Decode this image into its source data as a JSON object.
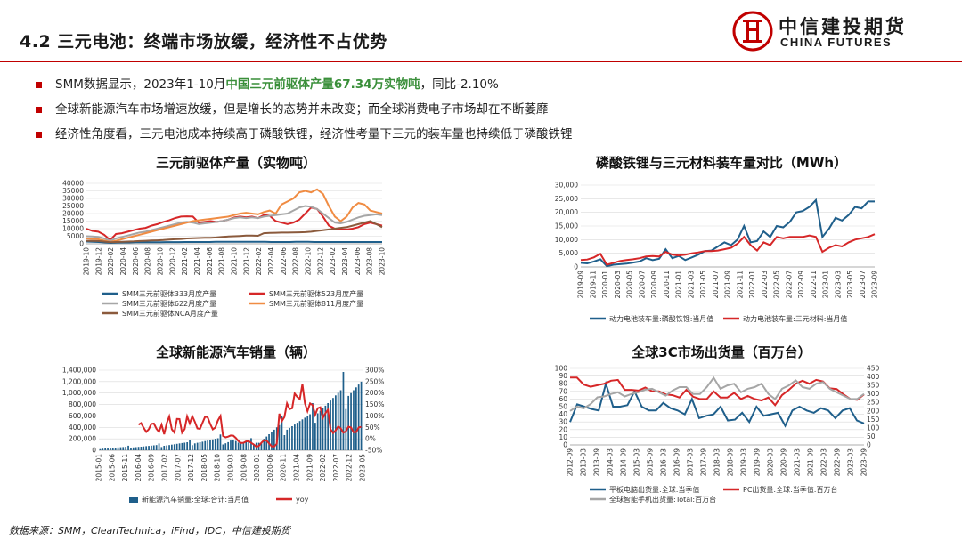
{
  "header": {
    "title": "4.2 三元电池：终端市场放缓，经济性不占优势",
    "logo_cn": "中信建投期货",
    "logo_en": "CHINA FUTURES"
  },
  "bullets": [
    {
      "pre": "SMM数据显示，2023年1-10月",
      "highlight": "中国三元前驱体产量67.34万实物吨",
      "post": "，同比-2.10%"
    },
    {
      "pre": "全球新能源汽车市场增速放缓，但是增长的态势并未改变；而全球消费电子市场却在不断萎靡",
      "highlight": "",
      "post": ""
    },
    {
      "pre": "经济性角度看，三元电池成本持续高于磷酸铁锂，经济性考量下三元的装车量也持续低于磷酸铁锂",
      "highlight": "",
      "post": ""
    }
  ],
  "source": "数据来源：SMM，CleanTechnica，iFind，IDC，中信建投期货",
  "chart_data": [
    {
      "type": "line",
      "title": "三元前驱体产量（实物吨）",
      "ylim": [
        0,
        40000
      ],
      "yticks": [
        "0",
        "5000",
        "10000",
        "15000",
        "20000",
        "25000",
        "30000",
        "35000",
        "40000"
      ],
      "xticks": [
        "2019-10",
        "2019-12",
        "2020-02",
        "2020-04",
        "2020-06",
        "2020-08",
        "2020-10",
        "2020-12",
        "2021-02",
        "2021-04",
        "2021-06",
        "2021-08",
        "2021-10",
        "2021-12",
        "2022-02",
        "2022-04",
        "2022-06",
        "2022-08",
        "2022-10",
        "2022-12",
        "2023-02",
        "2023-04",
        "2023-06",
        "2023-08",
        "2023-10"
      ],
      "legend_position": "bottom",
      "series": [
        {
          "name": "SMM三元前驱体333月度产量",
          "color": "#1f5f8b",
          "values": [
            1500,
            1300,
            1200,
            900,
            600,
            800,
            900,
            900,
            1000,
            1000,
            1000,
            1000,
            1000,
            1100,
            1100,
            1100,
            1200,
            1200,
            1200,
            1200,
            1200,
            1300,
            1300,
            1300,
            1300,
            1300,
            1300,
            1300,
            1300,
            1300,
            1200,
            1200,
            1200,
            1200,
            1300,
            1300,
            1300,
            1200,
            1200,
            1200,
            1200,
            1200,
            1200,
            1200,
            1200,
            1200,
            1200,
            1200,
            1200
          ]
        },
        {
          "name": "SMM三元前驱体523月度产量",
          "color": "#d62728",
          "values": [
            10000,
            8500,
            8000,
            6000,
            2500,
            6500,
            7000,
            8000,
            9000,
            10000,
            10500,
            12000,
            13000,
            14500,
            15500,
            17000,
            18000,
            18200,
            18000,
            14000,
            14500,
            15000,
            14500,
            15000,
            16000,
            17500,
            18000,
            17500,
            18000,
            17000,
            19000,
            18500,
            15000,
            14000,
            13000,
            14000,
            16000,
            20000,
            24000,
            23000,
            18000,
            12000,
            10000,
            9500,
            9500,
            10000,
            11000,
            13000,
            14000,
            13000,
            12000
          ]
        },
        {
          "name": "SMM三元前驱体622月度产量",
          "color": "#a6a6a6",
          "values": [
            5000,
            4800,
            4500,
            3500,
            2000,
            3500,
            4500,
            5500,
            6500,
            7500,
            8000,
            9000,
            10000,
            11000,
            12000,
            13000,
            14000,
            14500,
            14000,
            13000,
            13500,
            14000,
            14500,
            15000,
            16000,
            17000,
            17500,
            17000,
            17500,
            17000,
            18000,
            18500,
            19000,
            19500,
            20000,
            22000,
            24000,
            25000,
            24500,
            23000,
            20000,
            17000,
            14000,
            13500,
            14500,
            16000,
            17500,
            18500,
            19000,
            19500,
            19000
          ]
        },
        {
          "name": "SMM三元前驱体811月度产量",
          "color": "#f08c43",
          "values": [
            3500,
            3200,
            3000,
            2200,
            1200,
            2000,
            3000,
            4000,
            5000,
            6000,
            7000,
            8000,
            9000,
            10000,
            11000,
            12000,
            13000,
            14000,
            15000,
            15500,
            16000,
            16500,
            17000,
            17500,
            18000,
            19000,
            20000,
            20500,
            20000,
            19500,
            21000,
            22000,
            20000,
            26000,
            28000,
            30000,
            34000,
            35000,
            34000,
            36000,
            33000,
            25000,
            18000,
            15000,
            18000,
            24000,
            27000,
            26000,
            22000,
            21000,
            20000
          ]
        },
        {
          "name": "SMM三元前驱体NCA月度产量",
          "color": "#8b5a3c",
          "values": [
            2000,
            1900,
            1800,
            1500,
            1000,
            1200,
            1300,
            1500,
            1600,
            1800,
            2000,
            2200,
            2300,
            2500,
            2800,
            3000,
            3200,
            3500,
            3700,
            3800,
            4000,
            4000,
            4200,
            4500,
            4800,
            5000,
            5200,
            5400,
            5400,
            5300,
            7000,
            7200,
            7300,
            7400,
            7400,
            7500,
            7600,
            7700,
            8000,
            8500,
            9000,
            9500,
            10000,
            10500,
            11000,
            12000,
            13000,
            14000,
            15000,
            13000,
            11000
          ]
        }
      ]
    },
    {
      "type": "line",
      "title": "磷酸铁锂与三元材料装车量对比（MWh）",
      "ylim": [
        0,
        30000
      ],
      "yticks": [
        "0",
        "5,000",
        "10,000",
        "15,000",
        "20,000",
        "25,000",
        "30,000"
      ],
      "xticks": [
        "2019-09",
        "2019-11",
        "2020-01",
        "2020-03",
        "2020-05",
        "2020-07",
        "2020-09",
        "2020-11",
        "2021-01",
        "2021-03",
        "2021-05",
        "2021-07",
        "2021-09",
        "2021-11",
        "2022-01",
        "2022-03",
        "2022-05",
        "2022-07",
        "2022-09",
        "2022-11",
        "2023-01",
        "2023-03",
        "2023-05",
        "2023-07",
        "2023-09"
      ],
      "legend_position": "bottom",
      "series": [
        {
          "name": "动力电池装车量:磷酸铁锂:当月值",
          "color": "#1f5f8b",
          "values": [
            1500,
            1300,
            2000,
            2800,
            300,
            800,
            1000,
            1200,
            1600,
            2000,
            3200,
            2500,
            3000,
            6500,
            3200,
            4000,
            2500,
            3500,
            4500,
            5800,
            6000,
            7500,
            9000,
            8000,
            10000,
            15000,
            9000,
            9500,
            13000,
            11000,
            15000,
            14500,
            16500,
            20000,
            20500,
            22000,
            24500,
            11000,
            14000,
            18000,
            17000,
            19000,
            22000,
            21500,
            24000,
            24000
          ]
        },
        {
          "name": "动力电池装车量:三元材料:当月值",
          "color": "#d62728",
          "values": [
            2500,
            2700,
            3500,
            4800,
            800,
            1500,
            2200,
            2500,
            2800,
            3200,
            3800,
            4000,
            3800,
            5500,
            4500,
            4200,
            4500,
            5000,
            5300,
            5800,
            5800,
            6000,
            6500,
            7000,
            8500,
            11000,
            8000,
            6000,
            9000,
            8000,
            11000,
            10500,
            11000,
            11000,
            11000,
            11500,
            11000,
            5500,
            7000,
            8000,
            7500,
            9000,
            10000,
            10500,
            11000,
            12000
          ]
        }
      ]
    },
    {
      "type": "bar",
      "title": "全球新能源汽车销量（辆）",
      "ylim": [
        0,
        1400000
      ],
      "yticks": [
        "0",
        "200,000",
        "400,000",
        "600,000",
        "800,000",
        "1,000,000",
        "1,200,000",
        "1,400,000"
      ],
      "y2ticks": [
        "-50%",
        "0%",
        "50%",
        "100%",
        "150%",
        "200%",
        "250%",
        "300%"
      ],
      "xticks": [
        "2015-01",
        "2015-06",
        "2015-11",
        "2016-04",
        "2016-09",
        "2017-02",
        "2017-07",
        "2017-12",
        "2018-05",
        "2018-10",
        "2019-03",
        "2019-08",
        "2020-01",
        "2020-06",
        "2020-11",
        "2021-04",
        "2021-09",
        "2022-02",
        "2022-07",
        "2022-12",
        "2023-05"
      ],
      "legend_position": "bottom",
      "series": [
        {
          "name": "新能源汽车销量:全球:合计:当月值",
          "color": "#1f5f8b"
        },
        {
          "name": "yoy",
          "color": "#d62728"
        }
      ]
    },
    {
      "type": "line",
      "title": "全球3C市场出货量（百万台）",
      "ylim": [
        0,
        100
      ],
      "yticks": [
        "0",
        "10",
        "20",
        "30",
        "40",
        "50",
        "60",
        "70",
        "80",
        "90",
        "100"
      ],
      "y2ticks": [
        "0",
        "50",
        "100",
        "150",
        "200",
        "250",
        "300",
        "350",
        "400",
        "450"
      ],
      "xticks": [
        "2012-09",
        "2013-03",
        "2013-09",
        "2014-03",
        "2014-09",
        "2015-03",
        "2015-09",
        "2016-03",
        "2016-09",
        "2017-03",
        "2017-09",
        "2018-03",
        "2018-09",
        "2019-03",
        "2019-09",
        "2020-03",
        "2020-09",
        "2021-03",
        "2021-09",
        "2022-03",
        "2022-09",
        "2023-03",
        "2023-09"
      ],
      "legend_position": "bottom",
      "series": [
        {
          "name": "平板电脑出货量:全球:当季值",
          "color": "#1f5f8b",
          "values": [
            30,
            53,
            50,
            47,
            45,
            80,
            50,
            50,
            52,
            70,
            50,
            45,
            45,
            55,
            48,
            45,
            40,
            60,
            35,
            38,
            40,
            50,
            32,
            33,
            42,
            30,
            50,
            38,
            40,
            42,
            25,
            45,
            50,
            45,
            42,
            48,
            45,
            35,
            45,
            48,
            32,
            28
          ]
        },
        {
          "name": "PC出货量:全球:当季值:百万台",
          "color": "#d62728",
          "values": [
            88,
            88,
            79,
            76,
            78,
            80,
            84,
            85,
            72,
            72,
            71,
            75,
            70,
            70,
            66,
            65,
            62,
            72,
            63,
            60,
            60,
            70,
            62,
            62,
            68,
            60,
            64,
            60,
            58,
            62,
            52,
            65,
            72,
            80,
            84,
            80,
            85,
            83,
            74,
            73,
            66,
            60,
            59,
            66
          ]
        },
        {
          "name": "全球智能手机出货量:Total:百万台",
          "color": "#a6a6a6",
          "values": [
            200,
            225,
            215,
            240,
            280,
            285,
            300,
            310,
            285,
            300,
            310,
            325,
            330,
            310,
            290,
            320,
            340,
            340,
            300,
            300,
            340,
            395,
            330,
            350,
            360,
            310,
            330,
            340,
            360,
            300,
            270,
            330,
            350,
            380,
            340,
            330,
            360,
            370,
            330,
            310,
            290,
            270,
            270,
            300
          ]
        }
      ]
    }
  ]
}
